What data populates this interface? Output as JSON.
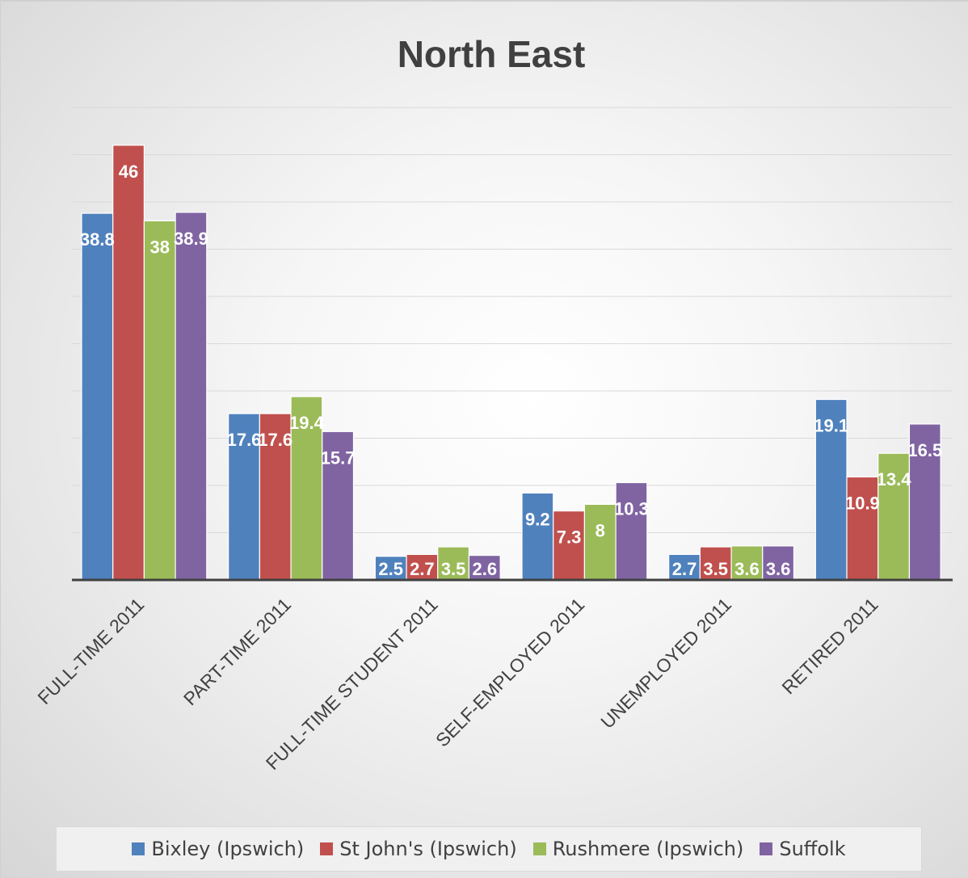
{
  "chart_data": {
    "type": "bar",
    "title": "North East",
    "categories": [
      "FULL-TIME 2011",
      "PART-TIME 2011",
      "FULL-TIME STUDENT 2011",
      "SELF-EMPLOYED 2011",
      "UNEMPLOYED 2011",
      "RETIRED 2011"
    ],
    "series": [
      {
        "name": "Bixley (Ipswich)",
        "color": "#4f81bd",
        "values": [
          38.8,
          17.6,
          2.5,
          9.2,
          2.7,
          19.1
        ]
      },
      {
        "name": "St John's (Ipswich)",
        "color": "#c0504d",
        "values": [
          46,
          17.6,
          2.7,
          7.3,
          3.5,
          10.9
        ]
      },
      {
        "name": "Rushmere (Ipswich)",
        "color": "#9bbb59",
        "values": [
          38,
          19.4,
          3.5,
          8,
          3.6,
          13.4
        ]
      },
      {
        "name": "Suffolk",
        "color": "#8064a2",
        "values": [
          38.9,
          15.7,
          2.6,
          10.3,
          3.6,
          16.5
        ]
      }
    ],
    "ylim": [
      0,
      50
    ],
    "grid": true,
    "legend": "bottom",
    "xlabel": "",
    "ylabel": ""
  }
}
